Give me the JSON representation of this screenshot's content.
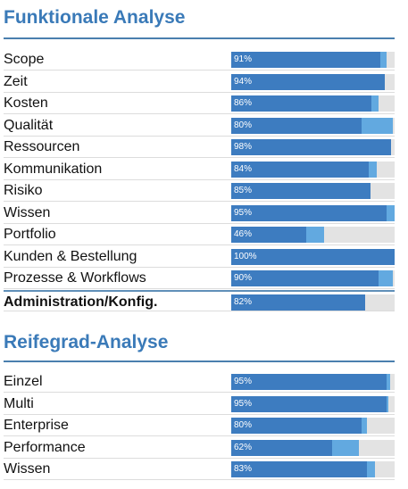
{
  "functional": {
    "title": "Funktionale Analyse",
    "rows": [
      {
        "label": "Scope",
        "percent": "91%",
        "value": 91,
        "extra": 4
      },
      {
        "label": "Zeit",
        "percent": "94%",
        "value": 94,
        "extra": 0
      },
      {
        "label": "Kosten",
        "percent": "86%",
        "value": 86,
        "extra": 4
      },
      {
        "label": "Qualität",
        "percent": "80%",
        "value": 80,
        "extra": 19
      },
      {
        "label": "Ressourcen",
        "percent": "98%",
        "value": 98,
        "extra": 0
      },
      {
        "label": "Kommunikation",
        "percent": "84%",
        "value": 84,
        "extra": 5
      },
      {
        "label": "Risiko",
        "percent": "85%",
        "value": 85,
        "extra": 0
      },
      {
        "label": "Wissen",
        "percent": "95%",
        "value": 95,
        "extra": 7
      },
      {
        "label": "Portfolio",
        "percent": "46%",
        "value": 46,
        "extra": 11
      },
      {
        "label": "Kunden & Bestellung",
        "percent": "100%",
        "value": 100,
        "extra": 0
      },
      {
        "label": "Prozesse & Workflows",
        "percent": "90%",
        "value": 90,
        "extra": 9
      },
      {
        "label": "Administration/Konfig.",
        "percent": "82%",
        "value": 82,
        "extra": 0
      }
    ]
  },
  "maturity": {
    "title": "Reifegrad-Analyse",
    "rows": [
      {
        "label": "Einzel",
        "percent": "95%",
        "value": 95,
        "extra": 2
      },
      {
        "label": "Multi",
        "percent": "95%",
        "value": 95,
        "extra": 1
      },
      {
        "label": "Enterprise",
        "percent": "80%",
        "value": 80,
        "extra": 3
      },
      {
        "label": "Performance",
        "percent": "62%",
        "value": 62,
        "extra": 16
      },
      {
        "label": "Wissen",
        "percent": "83%",
        "value": 83,
        "extra": 5
      }
    ]
  },
  "colors": {
    "title": "#3a7ab8",
    "bar_main": "#3d7cc0",
    "bar_light": "#62a9e0",
    "track": "#e3e3e3"
  }
}
